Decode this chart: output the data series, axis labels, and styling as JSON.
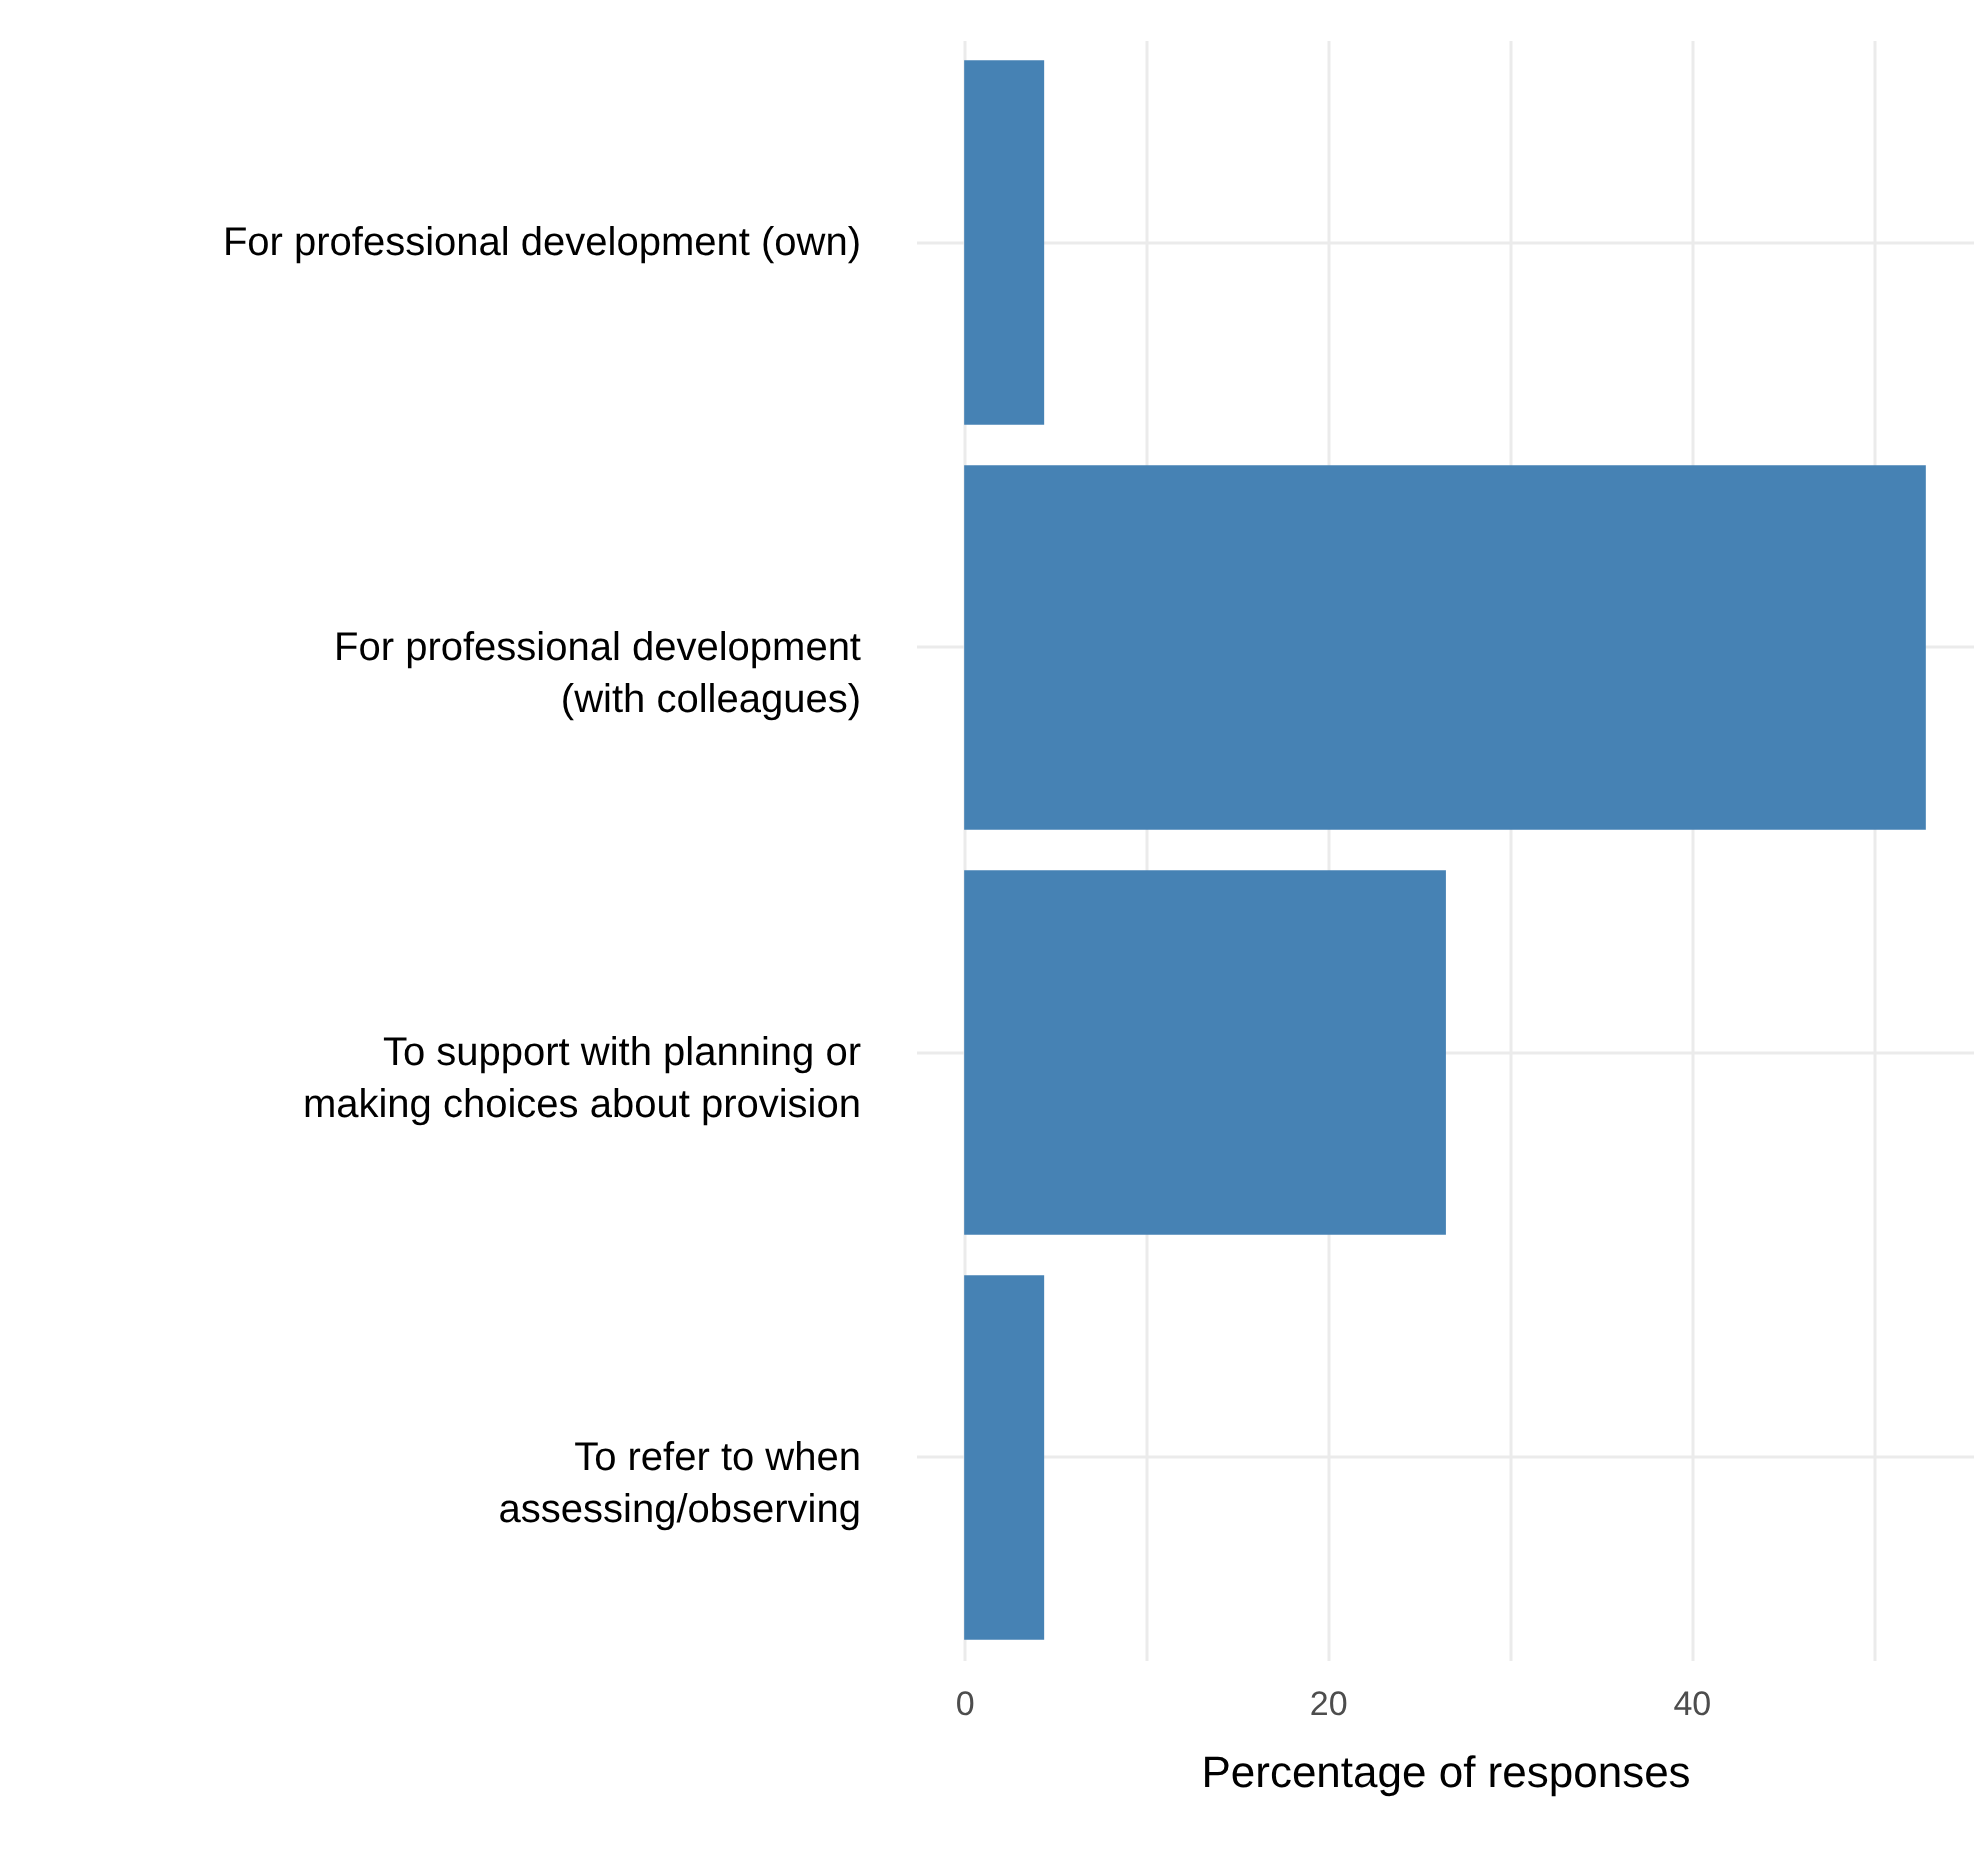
{
  "chart_data": {
    "type": "bar",
    "orientation": "horizontal",
    "xlabel": "Percentage of responses",
    "categories": [
      "For professional development (own)",
      "For professional development\n(with colleagues)",
      "To support with planning or\nmaking choices about provision",
      "To refer to when\nassessing/observing"
    ],
    "values": [
      4.4,
      52.9,
      26.5,
      4.4
    ],
    "color": "#4682b4",
    "xlim": [
      -2.65,
      55.55
    ],
    "xticks": [
      0,
      {
        "value": 10,
        "label": null
      },
      20,
      {
        "value": 30,
        "label": null
      },
      40,
      {
        "value": 50,
        "label": null
      }
    ],
    "grid": true
  }
}
